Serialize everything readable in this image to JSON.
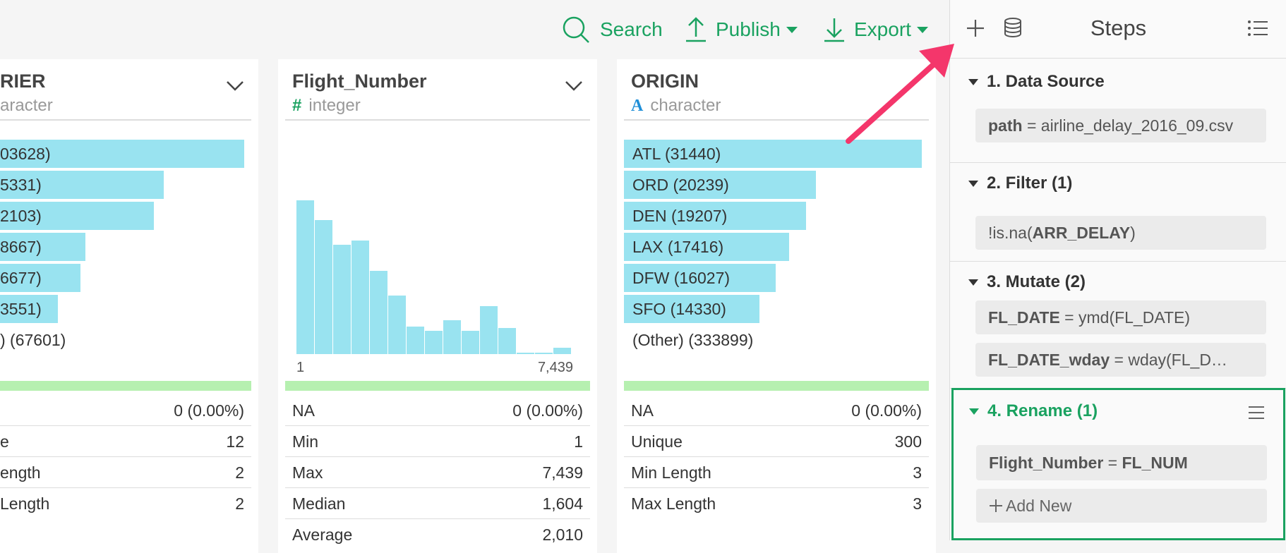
{
  "toolbar": {
    "search_label": "Search",
    "publish_label": "Publish",
    "export_label": "Export"
  },
  "columns": [
    {
      "name": "RIER",
      "type_label": "aracter",
      "bars": [
        {
          "label": "03628)"
        },
        {
          "label": "5331)"
        },
        {
          "label": "2103)"
        },
        {
          "label": "8667)"
        },
        {
          "label": "6677)"
        },
        {
          "label": "3551)"
        }
      ],
      "other_label": ") (67601)",
      "stats": [
        {
          "k": "",
          "v": "0 (0.00%)"
        },
        {
          "k": "e",
          "v": "12"
        },
        {
          "k": "ength",
          "v": "2"
        },
        {
          "k": "Length",
          "v": "2"
        }
      ]
    },
    {
      "name": "Flight_Number",
      "type_symbol": "#",
      "type_label": "integer",
      "hist_min": "1",
      "hist_max": "7,439",
      "hist_values": [
        100,
        87,
        71,
        74,
        54,
        38,
        18,
        15,
        22,
        15,
        31,
        17,
        1,
        1,
        4
      ],
      "stats": [
        {
          "k": "NA",
          "v": "0 (0.00%)"
        },
        {
          "k": "Min",
          "v": "1"
        },
        {
          "k": "Max",
          "v": "7,439"
        },
        {
          "k": "Median",
          "v": "1,604"
        },
        {
          "k": "Average",
          "v": "2,010"
        }
      ]
    },
    {
      "name": "ORIGIN",
      "type_symbol": "A",
      "type_label": "character",
      "bars": [
        {
          "label": "ATL (31440)",
          "value": 31440
        },
        {
          "label": "ORD (20239)",
          "value": 20239
        },
        {
          "label": "DEN (19207)",
          "value": 19207
        },
        {
          "label": "LAX (17416)",
          "value": 17416
        },
        {
          "label": "DFW (16027)",
          "value": 16027
        },
        {
          "label": "SFO (14330)",
          "value": 14330
        }
      ],
      "other_label": "(Other) (333899)",
      "stats": [
        {
          "k": "NA",
          "v": "0 (0.00%)"
        },
        {
          "k": "Unique",
          "v": "300"
        },
        {
          "k": "Min Length",
          "v": "3"
        },
        {
          "k": "Max Length",
          "v": "3"
        }
      ]
    }
  ],
  "steps_panel": {
    "title": "Steps",
    "steps": [
      {
        "title": "1. Data Source",
        "rows": [
          {
            "key": "path",
            "op": " = ",
            "val": "airline_delay_2016_09.csv"
          }
        ]
      },
      {
        "title": "2. Filter (1)",
        "rows": [
          {
            "pre": "!is.na(",
            "key": "ARR_DELAY",
            "post": ")"
          }
        ]
      },
      {
        "title": "3. Mutate (2)",
        "rows": [
          {
            "key": "FL_DATE",
            "op": " = ",
            "val": "ymd(FL_DATE)"
          },
          {
            "key": "FL_DATE_wday",
            "op": " = ",
            "val": "wday(FL_D…"
          }
        ]
      },
      {
        "title": "4. Rename (1)",
        "rows": [
          {
            "key": "Flight_Number",
            "op": " = ",
            "key2": "FL_NUM"
          }
        ],
        "add_new": "Add New"
      }
    ]
  },
  "colors": {
    "accent": "#1aa260",
    "bar": "#99e3f0",
    "na_bar": "#b6f0b0",
    "arrow": "#f4366b"
  }
}
